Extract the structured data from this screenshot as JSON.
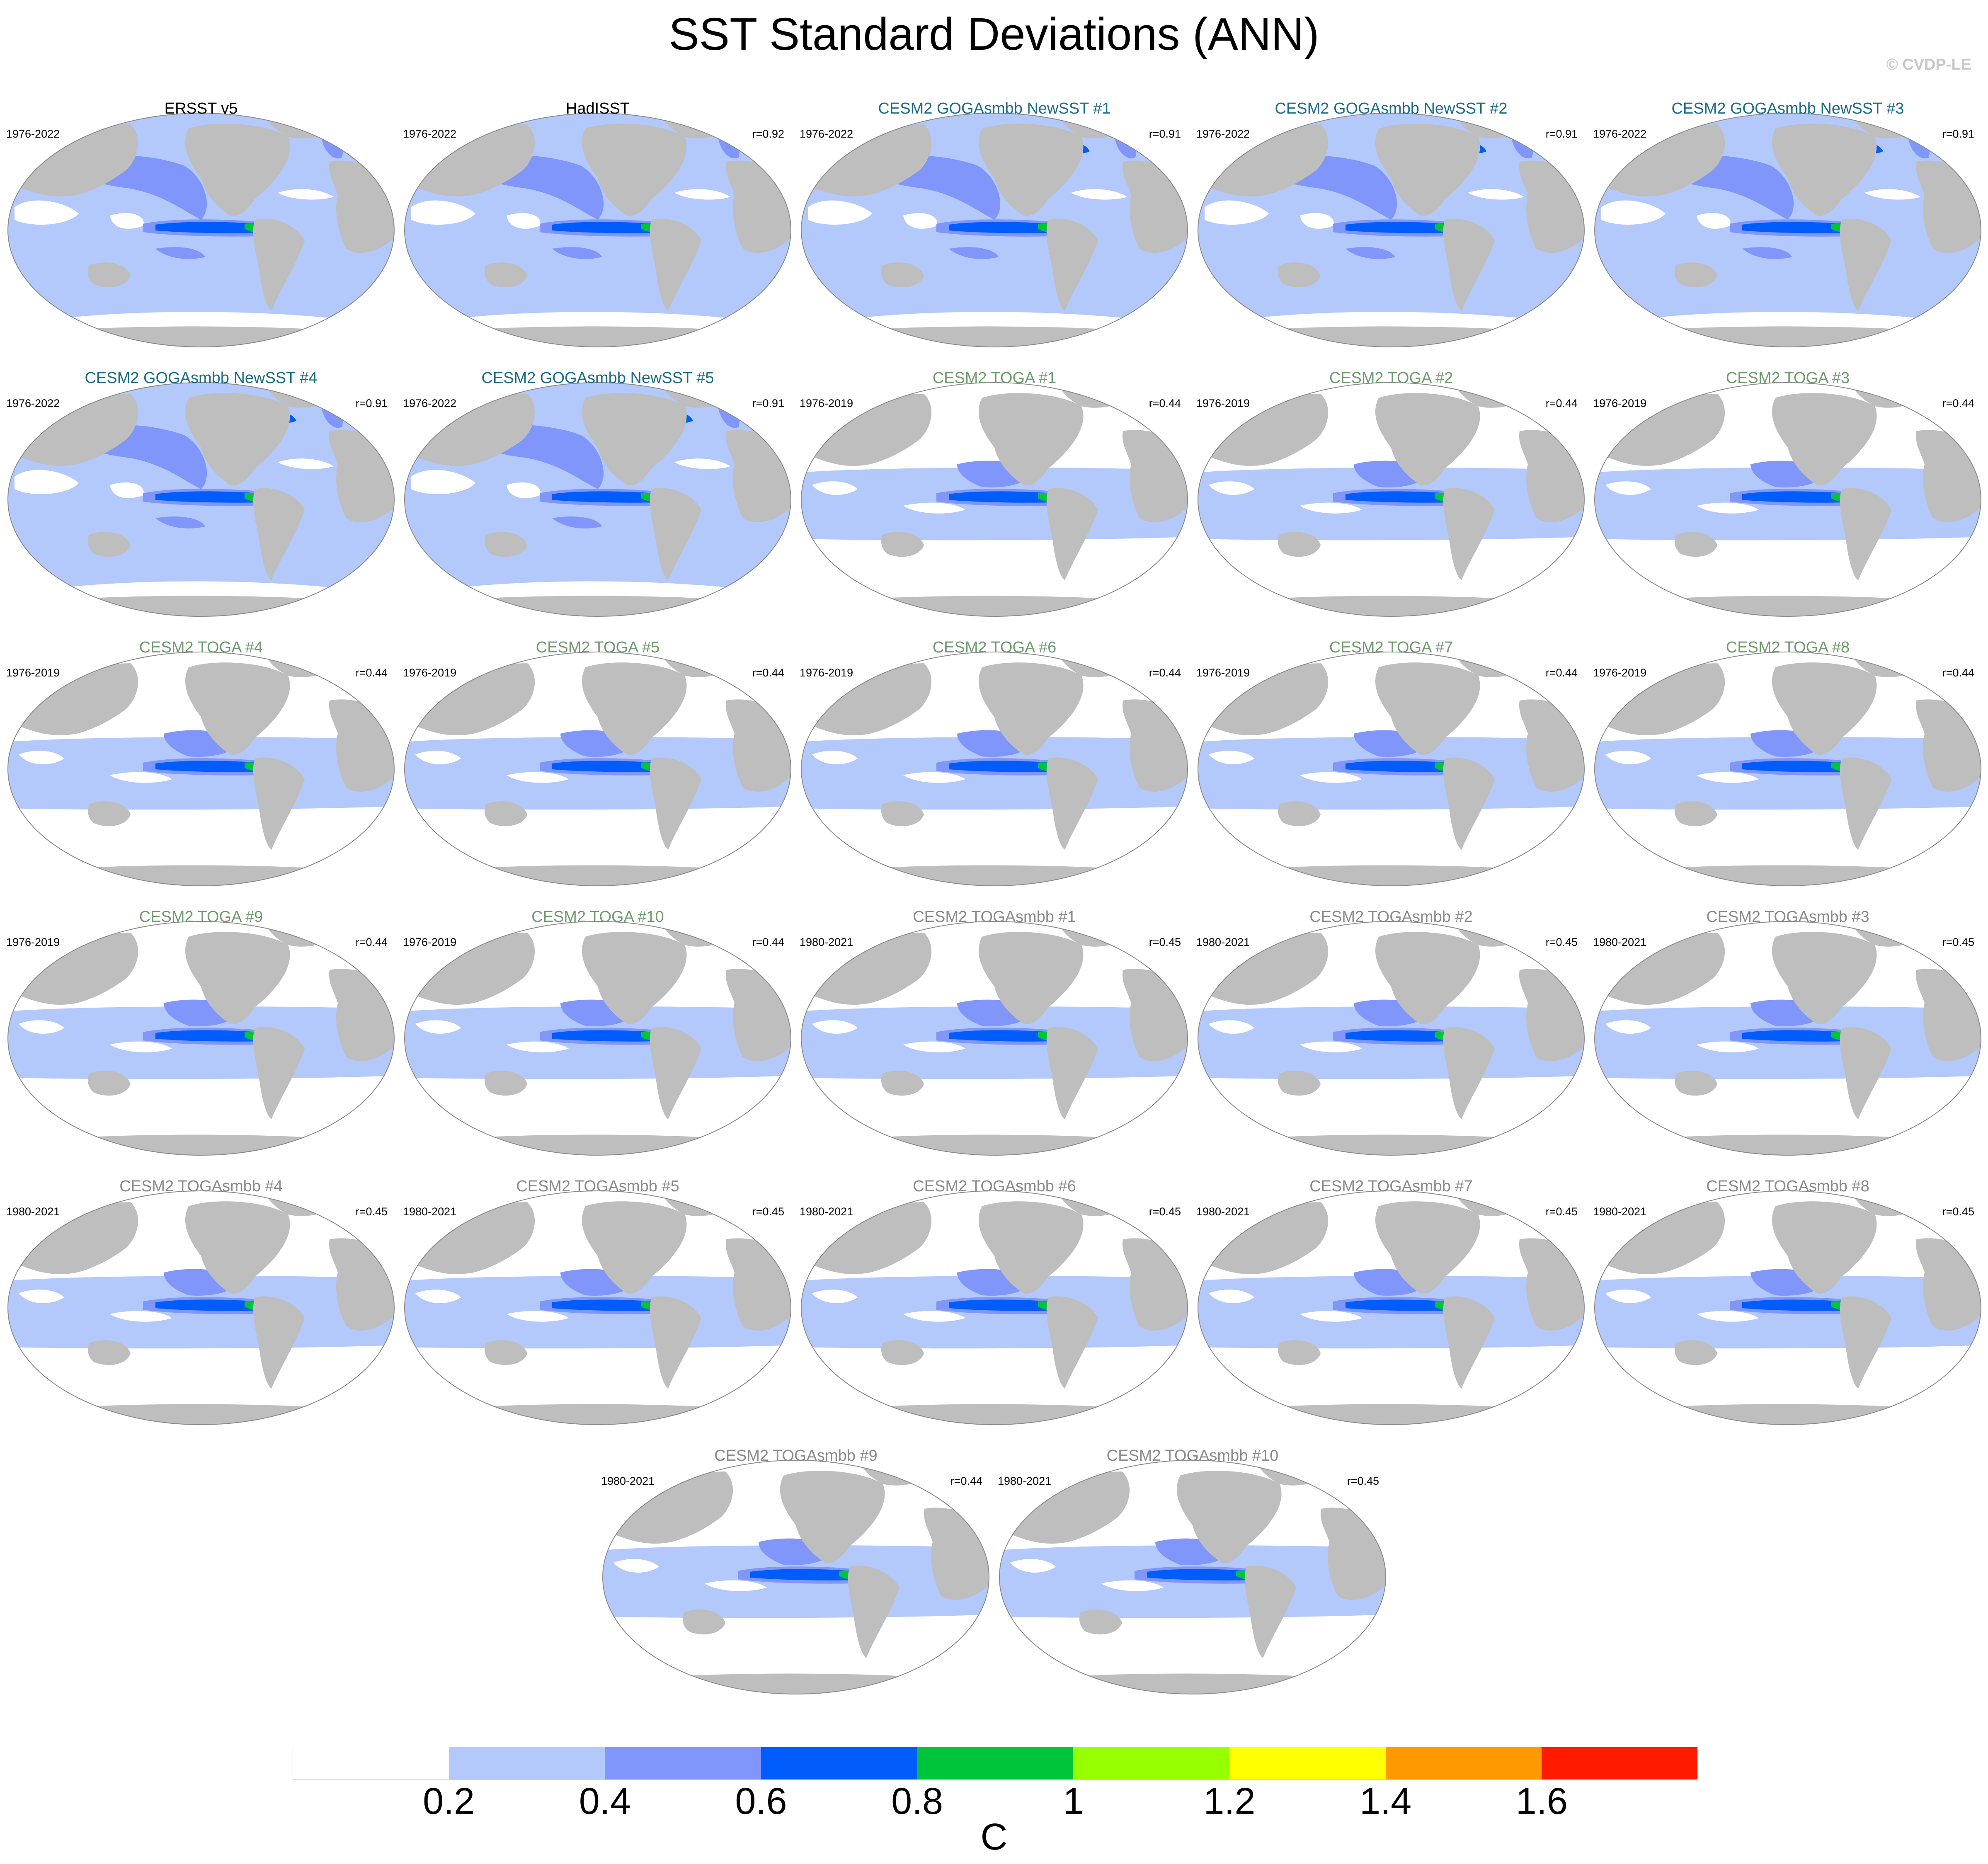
{
  "title": "SST Standard Deviations (ANN)",
  "watermark": "© CVDP-LE",
  "legend": {
    "colors": [
      "#ffffff",
      "#b3c8fb",
      "#8096fb",
      "#005cfb",
      "#00c53a",
      "#96ff00",
      "#ffff00",
      "#ff9900",
      "#ff1a00"
    ],
    "labels": [
      "0.2",
      "0.4",
      "0.6",
      "0.8",
      "1",
      "1.2",
      "1.4",
      "1.6"
    ],
    "units": "C"
  },
  "colors": {
    "land": "#bebebe",
    "title_obs": "#000000",
    "title_goga": "#1a6b85",
    "title_toga": "#6e9a6e",
    "title_togasmbb": "#8a8a8a"
  },
  "panels": [
    {
      "title": "ERSST v5",
      "years": "1976-2022",
      "r": "",
      "group": "obs"
    },
    {
      "title": "HadISST",
      "years": "1976-2022",
      "r": "r=0.92",
      "group": "obs"
    },
    {
      "title": "CESM2 GOGAsmbb NewSST #1",
      "years": "1976-2022",
      "r": "r=0.91",
      "group": "goga"
    },
    {
      "title": "CESM2 GOGAsmbb NewSST #2",
      "years": "1976-2022",
      "r": "r=0.91",
      "group": "goga"
    },
    {
      "title": "CESM2 GOGAsmbb NewSST #3",
      "years": "1976-2022",
      "r": "r=0.91",
      "group": "goga"
    },
    {
      "title": "CESM2 GOGAsmbb NewSST #4",
      "years": "1976-2022",
      "r": "r=0.91",
      "group": "goga"
    },
    {
      "title": "CESM2 GOGAsmbb NewSST #5",
      "years": "1976-2022",
      "r": "r=0.91",
      "group": "goga"
    },
    {
      "title": "CESM2 TOGA #1",
      "years": "1976-2019",
      "r": "r=0.44",
      "group": "toga"
    },
    {
      "title": "CESM2 TOGA #2",
      "years": "1976-2019",
      "r": "r=0.44",
      "group": "toga"
    },
    {
      "title": "CESM2 TOGA #3",
      "years": "1976-2019",
      "r": "r=0.44",
      "group": "toga"
    },
    {
      "title": "CESM2 TOGA #4",
      "years": "1976-2019",
      "r": "r=0.44",
      "group": "toga"
    },
    {
      "title": "CESM2 TOGA #5",
      "years": "1976-2019",
      "r": "r=0.44",
      "group": "toga"
    },
    {
      "title": "CESM2 TOGA #6",
      "years": "1976-2019",
      "r": "r=0.44",
      "group": "toga"
    },
    {
      "title": "CESM2 TOGA #7",
      "years": "1976-2019",
      "r": "r=0.44",
      "group": "toga"
    },
    {
      "title": "CESM2 TOGA #8",
      "years": "1976-2019",
      "r": "r=0.44",
      "group": "toga"
    },
    {
      "title": "CESM2 TOGA #9",
      "years": "1976-2019",
      "r": "r=0.44",
      "group": "toga"
    },
    {
      "title": "CESM2 TOGA #10",
      "years": "1976-2019",
      "r": "r=0.44",
      "group": "toga"
    },
    {
      "title": "CESM2 TOGAsmbb #1",
      "years": "1980-2021",
      "r": "r=0.45",
      "group": "togasmbb"
    },
    {
      "title": "CESM2 TOGAsmbb #2",
      "years": "1980-2021",
      "r": "r=0.45",
      "group": "togasmbb"
    },
    {
      "title": "CESM2 TOGAsmbb #3",
      "years": "1980-2021",
      "r": "r=0.45",
      "group": "togasmbb"
    },
    {
      "title": "CESM2 TOGAsmbb #4",
      "years": "1980-2021",
      "r": "r=0.45",
      "group": "togasmbb"
    },
    {
      "title": "CESM2 TOGAsmbb #5",
      "years": "1980-2021",
      "r": "r=0.45",
      "group": "togasmbb"
    },
    {
      "title": "CESM2 TOGAsmbb #6",
      "years": "1980-2021",
      "r": "r=0.45",
      "group": "togasmbb"
    },
    {
      "title": "CESM2 TOGAsmbb #7",
      "years": "1980-2021",
      "r": "r=0.45",
      "group": "togasmbb"
    },
    {
      "title": "CESM2 TOGAsmbb #8",
      "years": "1980-2021",
      "r": "r=0.45",
      "group": "togasmbb"
    },
    {
      "title": "CESM2 TOGAsmbb #9",
      "years": "1980-2021",
      "r": "r=0.44",
      "group": "togasmbb"
    },
    {
      "title": "CESM2 TOGAsmbb #10",
      "years": "1980-2021",
      "r": "r=0.45",
      "group": "togasmbb"
    }
  ]
}
